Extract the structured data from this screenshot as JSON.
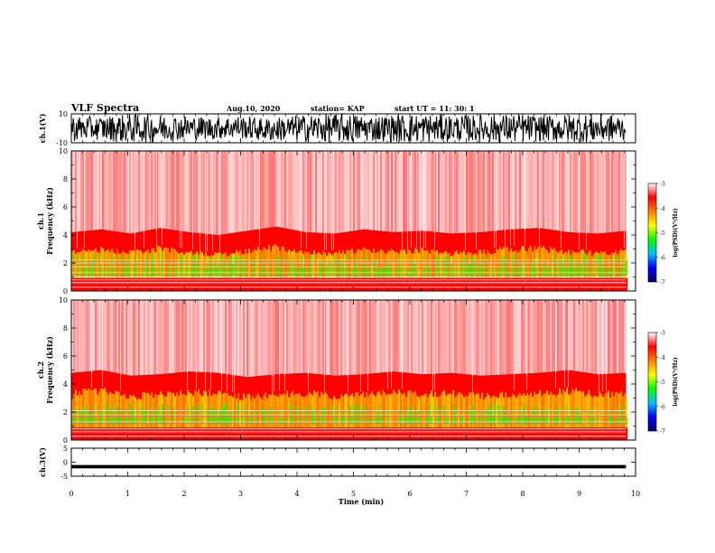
{
  "header": {
    "title": "VLF Spectra",
    "date": "Aug.10, 2020",
    "station": "station= KAP",
    "start": "start  UT =   11: 30: 1"
  },
  "chart_data": [
    {
      "type": "line",
      "id": "ch1-waveform",
      "ylabel": "ch.1(V)",
      "ylim": [
        -10,
        10
      ],
      "xlim": [
        0,
        10
      ],
      "yticks": [
        "10",
        "-10"
      ],
      "color": "#000000",
      "x": [
        0.0,
        0.5,
        1.0,
        1.5,
        2.0,
        2.5,
        3.0,
        3.5,
        4.0,
        4.5,
        5.0,
        5.5,
        6.0,
        6.5,
        7.0,
        7.5,
        8.0,
        8.5,
        9.0,
        9.5,
        9.83
      ],
      "y_max": [
        9,
        8,
        10,
        10,
        9,
        8,
        9,
        7,
        9,
        10,
        10,
        9,
        10,
        10,
        9,
        10,
        10,
        9,
        10,
        10,
        9
      ],
      "y_min": [
        -9,
        -8,
        -10,
        -10,
        -8,
        -8,
        -7,
        -9,
        -9,
        -10,
        -10,
        -9,
        -10,
        -10,
        -9,
        -10,
        -10,
        -9,
        -10,
        -10,
        -9
      ]
    },
    {
      "type": "heatmap",
      "id": "ch1-spectrogram",
      "ylabel": "ch.1\nFrequency (kHz)",
      "xlim": [
        0,
        10
      ],
      "ylim": [
        0,
        10
      ],
      "yticks": [
        "0",
        "2",
        "4",
        "6",
        "8",
        "10"
      ],
      "data_end_min": 9.83,
      "colorbar": {
        "label": "log(PSD)(V²/Hz)",
        "range": [
          -7,
          -3
        ],
        "ticks": [
          "-3",
          "-4",
          "-5",
          "-6",
          "-7"
        ]
      },
      "band_top_khz": [
        3.0,
        3.2,
        2.9,
        3.3,
        3.0,
        2.8,
        3.1,
        3.4,
        3.0,
        2.9,
        3.2,
        3.0,
        3.1,
        2.9,
        3.0,
        3.2,
        3.3,
        3.0,
        2.9,
        3.1
      ],
      "green_top_khz": 2.3,
      "horizontal_lines_khz": [
        2.2,
        2.0,
        1.7,
        1.3,
        1.0,
        0.8,
        0.6,
        0.3
      ]
    },
    {
      "type": "heatmap",
      "id": "ch2-spectrogram",
      "ylabel": "ch.2\nFrequency (kHz)",
      "xlim": [
        0,
        10
      ],
      "ylim": [
        0,
        10
      ],
      "yticks": [
        "0",
        "2",
        "4",
        "6",
        "8",
        "10"
      ],
      "data_end_min": 9.83,
      "colorbar": {
        "label": "log(PSD)(V²/Hz)",
        "range": [
          -7,
          -3
        ],
        "ticks": [
          "-3",
          "-4",
          "-5",
          "-6",
          "-7"
        ]
      },
      "band_top_khz": [
        3.6,
        3.8,
        3.4,
        3.5,
        3.7,
        3.6,
        3.3,
        3.5,
        3.6,
        3.4,
        3.5,
        3.7,
        3.5,
        3.6,
        3.4,
        3.5,
        3.6,
        3.8,
        3.5,
        3.6
      ],
      "green_top_khz": 2.2,
      "horizontal_lines_khz": [
        2.1,
        1.8,
        1.3,
        0.8,
        0.6,
        0.3
      ]
    },
    {
      "type": "line",
      "id": "ch3-waveform",
      "ylabel": "ch.3(V)",
      "ylim": [
        -5,
        5
      ],
      "xlim": [
        0,
        10
      ],
      "yticks": [
        "5",
        "0",
        "-5"
      ],
      "color": "#000000",
      "x": [
        0,
        9.83
      ],
      "y_max": [
        -1.0,
        -1.0
      ],
      "y_min": [
        -2.2,
        -2.2
      ]
    }
  ],
  "xaxis": {
    "label": "Time (min)",
    "ticks": [
      "0",
      "1",
      "2",
      "3",
      "4",
      "5",
      "6",
      "7",
      "8",
      "9",
      "10"
    ]
  },
  "colors": {
    "background_red": "#ff0000",
    "noise_white": "#ffffff",
    "band_yellow": "#ffd800",
    "band_green": "#40e000",
    "colorbar_stops": [
      "#000066",
      "#0000ff",
      "#00c0ff",
      "#00ff00",
      "#ffff00",
      "#ff8000",
      "#ff0000",
      "#ffffff"
    ]
  }
}
